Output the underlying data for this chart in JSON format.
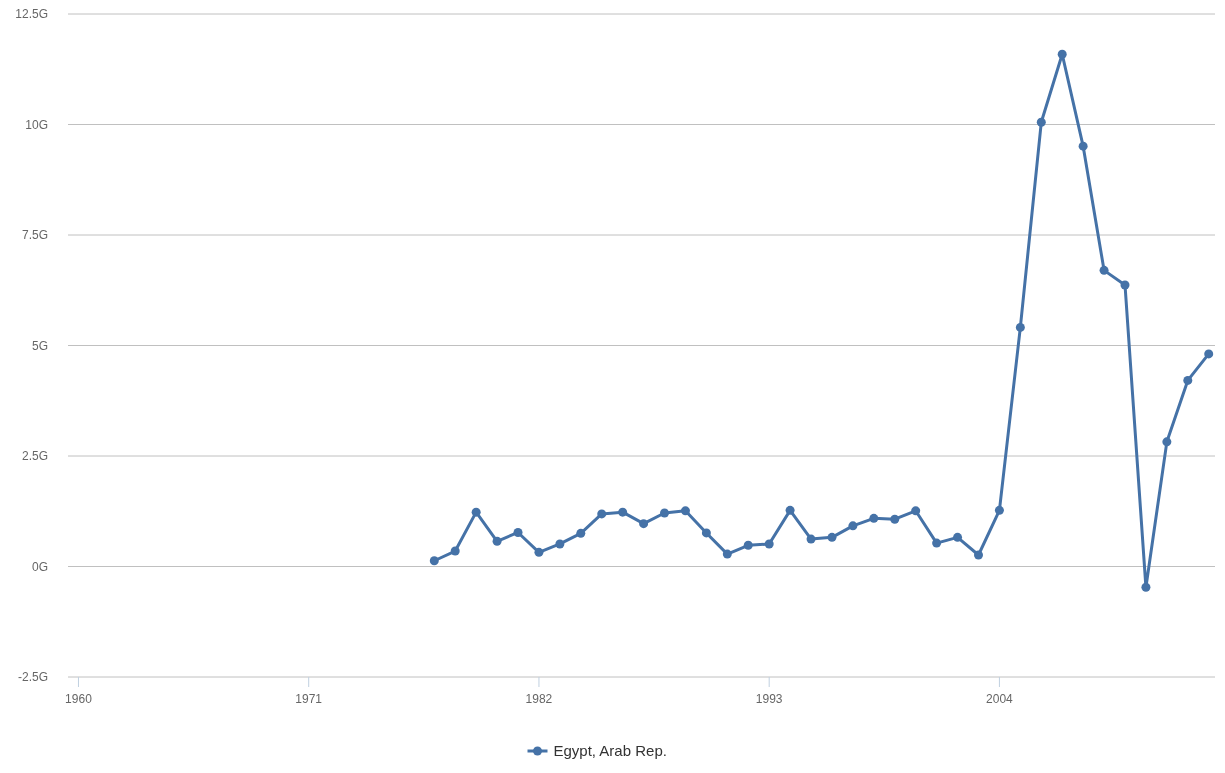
{
  "chart_data": {
    "type": "line",
    "x": [
      1977,
      1978,
      1979,
      1980,
      1981,
      1982,
      1983,
      1984,
      1985,
      1986,
      1987,
      1988,
      1989,
      1990,
      1991,
      1992,
      1993,
      1994,
      1995,
      1996,
      1997,
      1998,
      1999,
      2000,
      2001,
      2002,
      2003,
      2004,
      2005,
      2006,
      2007,
      2008,
      2009,
      2010,
      2011,
      2012,
      2013,
      2014
    ],
    "series": [
      {
        "name": "Egypt, Arab Rep.",
        "color": "#4572a7",
        "values": [
          0.13,
          0.35,
          1.23,
          0.57,
          0.77,
          0.32,
          0.51,
          0.75,
          1.19,
          1.23,
          0.97,
          1.21,
          1.26,
          0.76,
          0.28,
          0.48,
          0.51,
          1.27,
          0.62,
          0.66,
          0.92,
          1.09,
          1.07,
          1.26,
          0.53,
          0.66,
          0.26,
          1.27,
          5.41,
          10.05,
          11.59,
          9.51,
          6.7,
          6.37,
          -0.47,
          2.82,
          4.21,
          4.81
        ]
      }
    ],
    "xlim": [
      1959.5,
      2014.3
    ],
    "xticks": [
      1960,
      1971,
      1982,
      1993,
      2004
    ],
    "ylim": [
      -2.5,
      12.5
    ],
    "yticks": [
      {
        "value": -2.5,
        "label": "-2.5G"
      },
      {
        "value": 0,
        "label": "0G"
      },
      {
        "value": 2.5,
        "label": "2.5G"
      },
      {
        "value": 5,
        "label": "5G"
      },
      {
        "value": 7.5,
        "label": "7.5G"
      },
      {
        "value": 10,
        "label": "10G"
      },
      {
        "value": 12.5,
        "label": "12.5G"
      }
    ],
    "grid": "y",
    "legend": "bottom",
    "marker": "circle",
    "line_style": "solid"
  }
}
